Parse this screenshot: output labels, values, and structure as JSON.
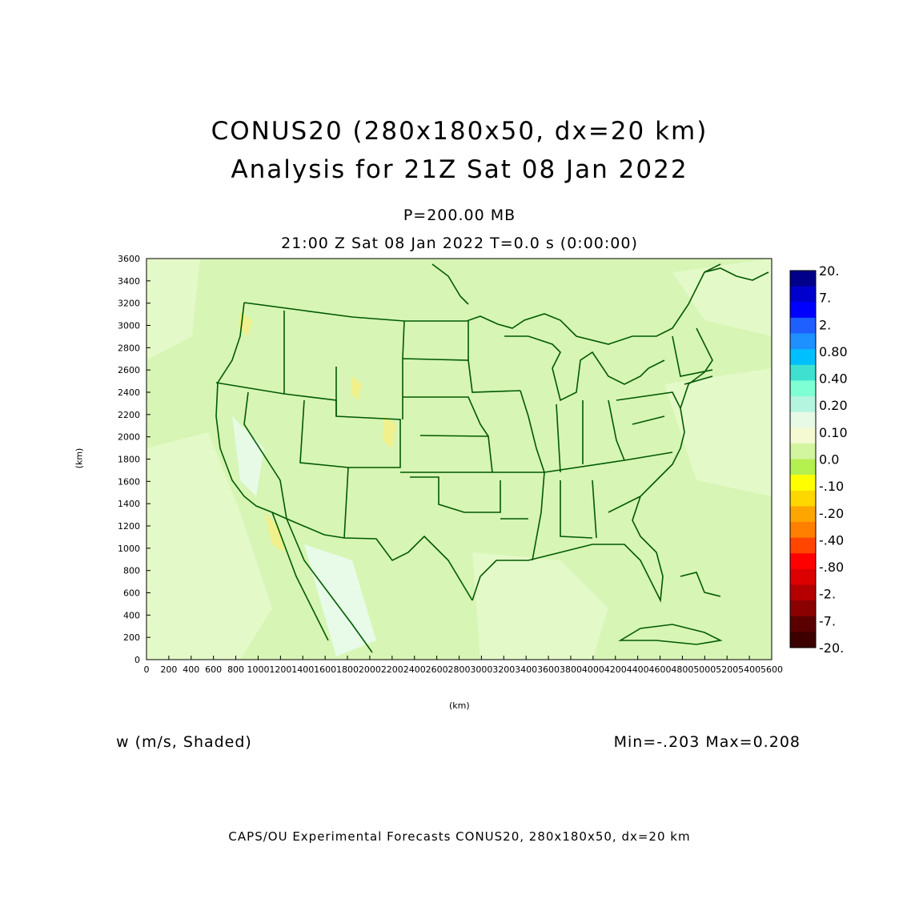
{
  "header": {
    "title_line1": "CONUS20 (280x180x50, dx=20 km)",
    "title_line2": "Analysis for 21Z Sat 08 Jan 2022",
    "level": "P=200.00 MB",
    "valid_time": "21:00 Z Sat 08 Jan 2022    T=0.0 s (0:00:00)"
  },
  "axes": {
    "xlabel": "(km)",
    "ylabel": "(km)",
    "x_ticks": [
      "0",
      "200",
      "400",
      "600",
      "800",
      "1000",
      "1200",
      "1400",
      "1600",
      "1800",
      "2000",
      "2200",
      "2400",
      "2600",
      "2800",
      "3000",
      "3200",
      "3400",
      "3600",
      "3800",
      "4000",
      "4200",
      "4400",
      "4600",
      "4800",
      "5000",
      "5200",
      "5400",
      "5600"
    ],
    "y_ticks": [
      "0",
      "200",
      "400",
      "600",
      "800",
      "1000",
      "1200",
      "1400",
      "1600",
      "1800",
      "2000",
      "2200",
      "2400",
      "2600",
      "2800",
      "3000",
      "3200",
      "3400",
      "3600"
    ],
    "xlim": [
      0,
      5600
    ],
    "ylim": [
      0,
      3600
    ]
  },
  "colorbar": {
    "labels": [
      "20.",
      "7.",
      "2.",
      "0.80",
      "0.40",
      "0.20",
      "0.10",
      "0.0",
      "-.10",
      "-.20",
      "-.40",
      "-.80",
      "-2.",
      "-7.",
      "-20."
    ],
    "colors": [
      "#00008b",
      "#0000cd",
      "#0000ff",
      "#1e60ff",
      "#1e90ff",
      "#00bfff",
      "#40e0d0",
      "#7fffd4",
      "#b4f5e0",
      "#e6fae6",
      "#f5fad2",
      "#d2f5a0",
      "#b4f050",
      "#ffff00",
      "#ffd700",
      "#ffa500",
      "#ff7f00",
      "#ff4500",
      "#ff0000",
      "#dc0000",
      "#b40000",
      "#8b0000",
      "#5a0000",
      "#3c0000"
    ]
  },
  "footer": {
    "field": "w (m/s, Shaded)",
    "minmax": "Min=-.203  Max=0.208",
    "credit": "CAPS/OU Experimental Forecasts  CONUS20, 280x180x50, dx=20 km"
  },
  "map_colors": {
    "background": "#d7f5b4",
    "boundary": "#005a00",
    "ocean": "#e4f9c8"
  }
}
